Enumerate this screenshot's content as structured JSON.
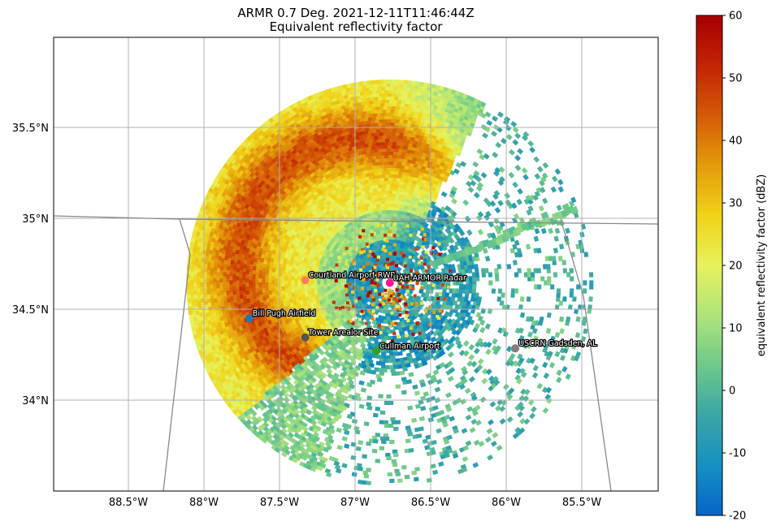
{
  "figure": {
    "title_line1": "ARMR 0.7 Deg. 2021-12-11T11:46:44Z",
    "title_line2": "Equivalent reflectivity factor"
  },
  "map": {
    "lon_range": [
      -89.0,
      -85.0
    ],
    "lat_range": [
      33.5,
      36.0
    ],
    "grid": true,
    "x_tick_labels": [
      {
        "lon": -88.5,
        "label": "88.5°W"
      },
      {
        "lon": -88.0,
        "label": "88°W"
      },
      {
        "lon": -87.5,
        "label": "87.5°W"
      },
      {
        "lon": -87.0,
        "label": "87°W"
      },
      {
        "lon": -86.5,
        "label": "86.5°W"
      },
      {
        "lon": -86.0,
        "label": "86°W"
      },
      {
        "lon": -85.5,
        "label": "85.5°W"
      }
    ],
    "y_tick_labels": [
      {
        "lat": 35.5,
        "label": "35.5°N"
      },
      {
        "lat": 35.0,
        "label": "35°N"
      },
      {
        "lat": 34.5,
        "label": "34.5°N"
      },
      {
        "lat": 34.0,
        "label": "34°N"
      }
    ],
    "radar_site": {
      "lon": -86.77,
      "lat": 34.645
    },
    "markers": [
      {
        "name": "Courtland Airport RWP",
        "lon": -87.33,
        "lat": 34.66,
        "color": "#ff7f50"
      },
      {
        "name": "UAH-ARMOR Radar",
        "lon": -86.77,
        "lat": 34.645,
        "color": "#ff1493"
      },
      {
        "name": "Bill Pugh Airfield",
        "lon": -87.7,
        "lat": 34.45,
        "color": "#1f77b4"
      },
      {
        "name": "Tower Areaior Site",
        "lon": -87.33,
        "lat": 34.345,
        "color": "#555555"
      },
      {
        "name": "Cullman Airport",
        "lon": -86.86,
        "lat": 34.27,
        "color": "#2ca02c"
      },
      {
        "name": "USCRN Gadsden, AL",
        "lon": -85.94,
        "lat": 34.285,
        "color": "#7f7f7f"
      }
    ]
  },
  "colorbar": {
    "label": "equivalent reflectivity factor (dBZ)",
    "min": -20,
    "max": 60,
    "ticks": [
      "-20",
      "-10",
      "0",
      "10",
      "20",
      "30",
      "40",
      "50",
      "60"
    ],
    "colormap": [
      "#0466c8",
      "#1590c2",
      "#3aa6a6",
      "#6ec98a",
      "#aee47a",
      "#e7f25c",
      "#f0d218",
      "#e39b0b",
      "#d55a07",
      "#c22404",
      "#a50000"
    ]
  },
  "chart_data": {
    "type": "heatmap",
    "title": "ARMR 0.7 Deg. 2021-12-11T11:46:44Z\nEquivalent reflectivity factor",
    "value_label": "equivalent reflectivity factor (dBZ)",
    "value_range": [
      -20,
      60
    ],
    "x_axis": "longitude",
    "y_axis": "latitude",
    "xlim": [
      -89.0,
      -85.0
    ],
    "ylim": [
      33.5,
      36.0
    ],
    "features": [
      {
        "region": "intense band NW of radar",
        "lon_range": [
          -87.9,
          -86.7
        ],
        "lat_range": [
          34.35,
          35.7
        ],
        "value_dbz": 42
      },
      {
        "region": "moderate stratiform NW sector",
        "lon_range": [
          -88.1,
          -86.8
        ],
        "lat_range": [
          34.3,
          35.7
        ],
        "value_dbz": 25
      },
      {
        "region": "light returns E / S",
        "lon_range": [
          -87.0,
          -85.5
        ],
        "lat_range": [
          33.6,
          34.9
        ],
        "value_dbz": 0
      },
      {
        "region": "ground clutter near radar",
        "lon_range": [
          -87.0,
          -86.5
        ],
        "lat_range": [
          34.4,
          34.8
        ],
        "value_dbz": -10
      }
    ]
  }
}
